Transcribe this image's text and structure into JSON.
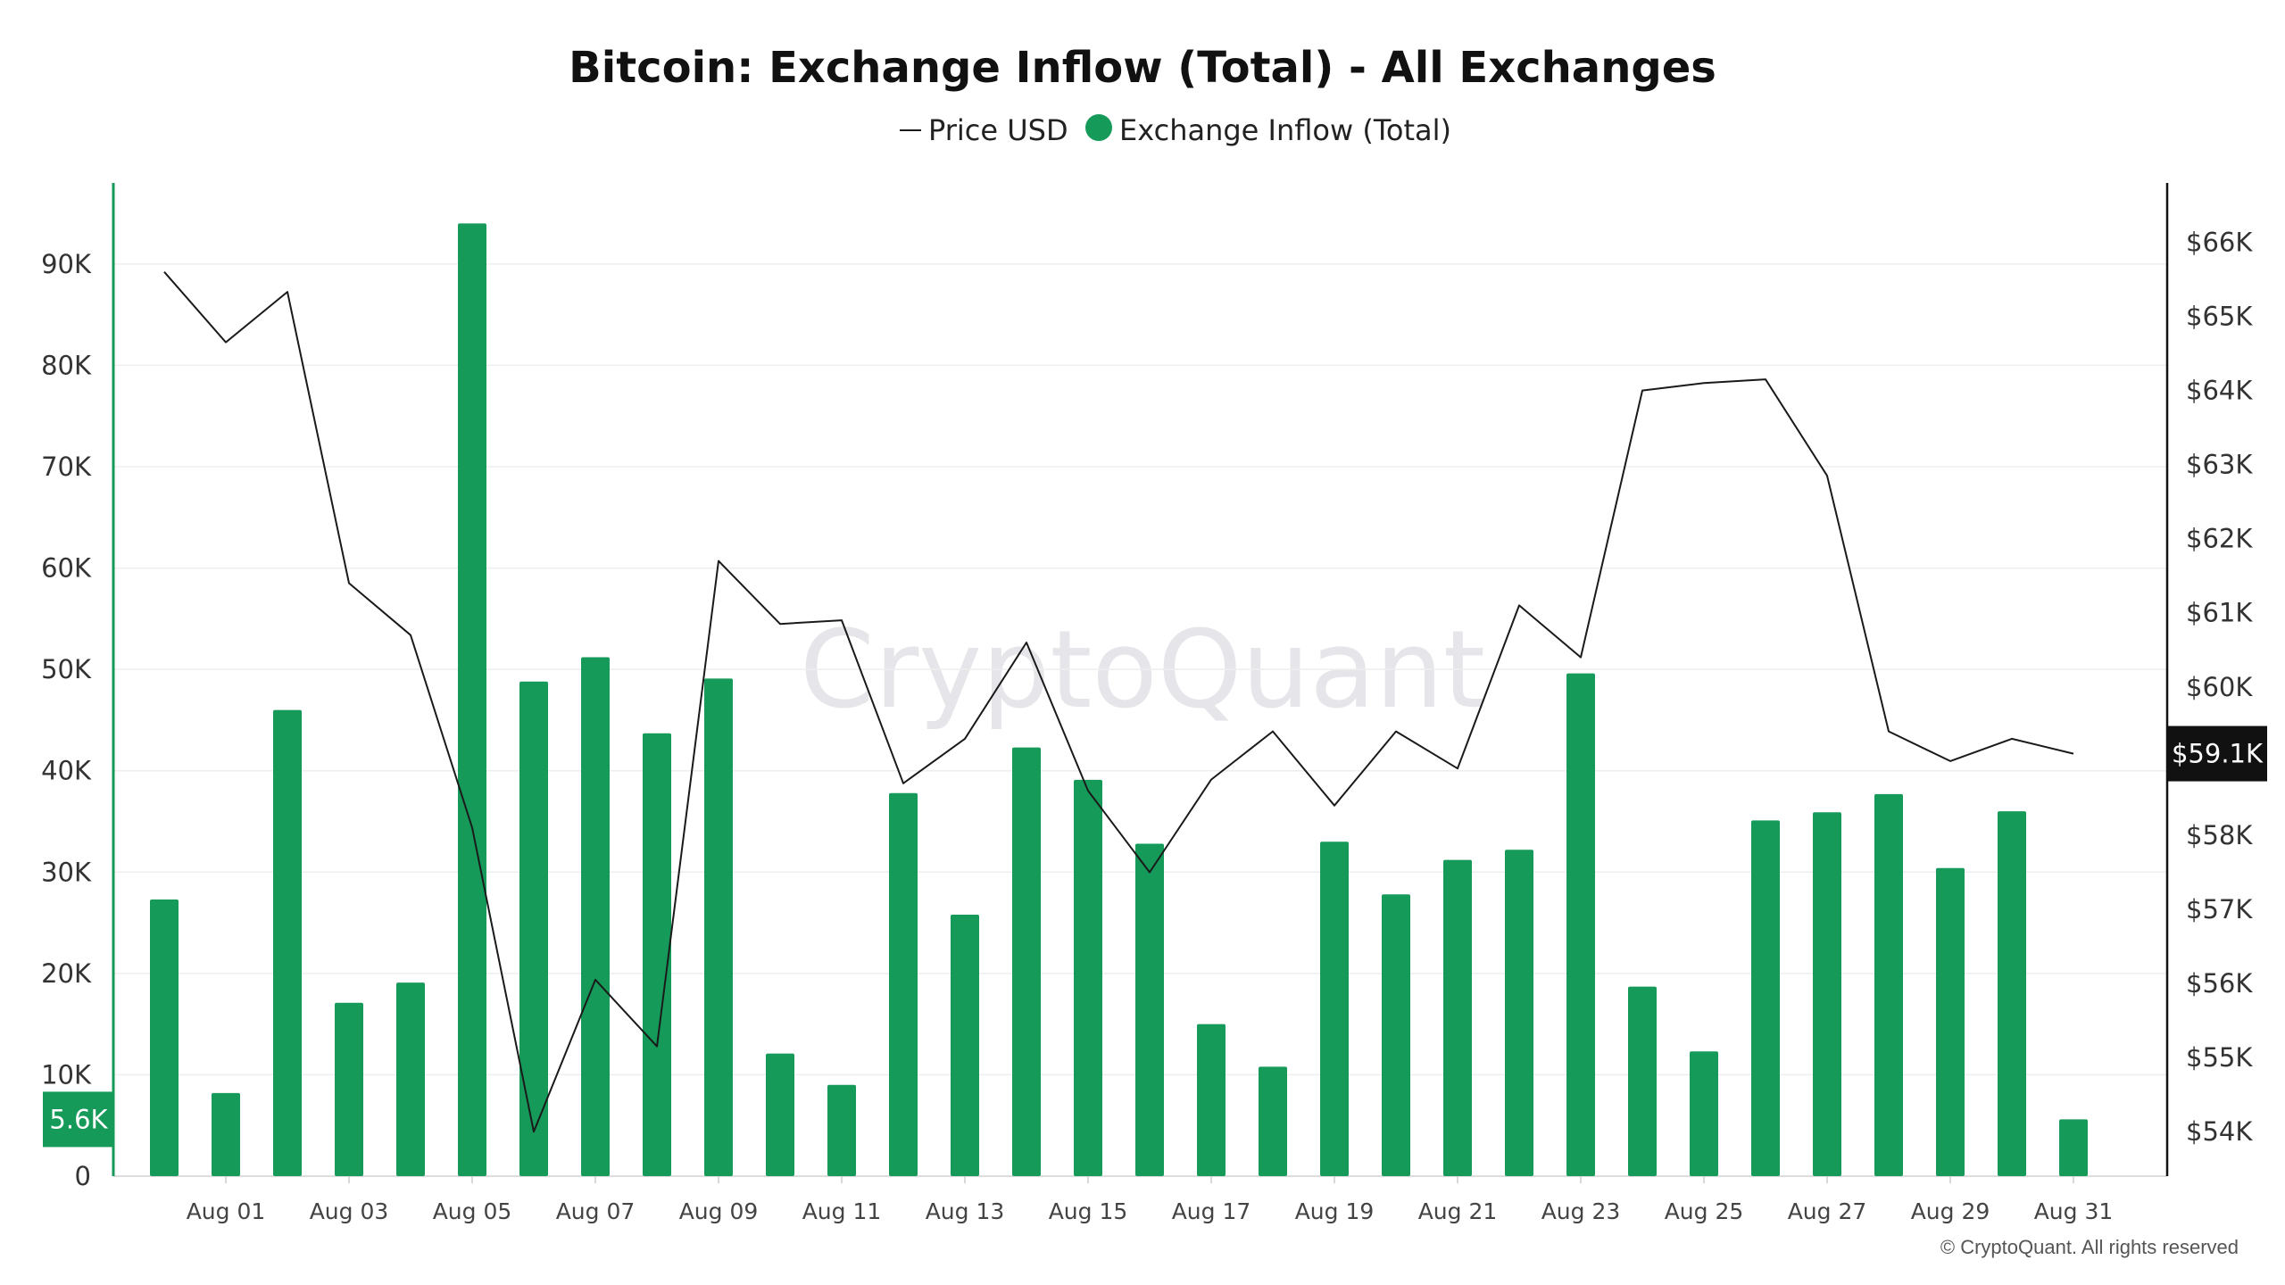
{
  "chart_data": {
    "type": "bar",
    "title": "Bitcoin: Exchange Inflow (Total) - All Exchanges",
    "legend": [
      {
        "label": "Price USD",
        "marker": "line",
        "color": "#1a1a1a"
      },
      {
        "label": "Exchange Inflow (Total)",
        "marker": "dot",
        "color": "#169a5a"
      }
    ],
    "legend_placement": "top-center",
    "categories": [
      "Jul 31",
      "Aug 01",
      "Aug 02",
      "Aug 03",
      "Aug 04",
      "Aug 05",
      "Aug 06",
      "Aug 07",
      "Aug 08",
      "Aug 09",
      "Aug 10",
      "Aug 11",
      "Aug 12",
      "Aug 13",
      "Aug 14",
      "Aug 15",
      "Aug 16",
      "Aug 17",
      "Aug 18",
      "Aug 19",
      "Aug 20",
      "Aug 21",
      "Aug 22",
      "Aug 23",
      "Aug 24",
      "Aug 25",
      "Aug 26",
      "Aug 27",
      "Aug 28",
      "Aug 29",
      "Aug 30",
      "Aug 31"
    ],
    "series": [
      {
        "name": "Exchange Inflow (Total)",
        "type": "bar",
        "axis": "left",
        "color": "#169a5a",
        "values": [
          27300,
          8200,
          46000,
          17100,
          19100,
          94000,
          48800,
          51200,
          43700,
          49100,
          12100,
          9000,
          37800,
          25800,
          42300,
          39100,
          32800,
          15000,
          10800,
          33000,
          27800,
          31200,
          32200,
          49600,
          18700,
          12300,
          35100,
          35900,
          37700,
          30400,
          36000,
          5600
        ]
      },
      {
        "name": "Price USD",
        "type": "line",
        "axis": "right",
        "color": "#1a1a1a",
        "values": [
          65600,
          64650,
          65330,
          61400,
          60700,
          58100,
          54000,
          56050,
          55150,
          61700,
          60850,
          60900,
          58700,
          59300,
          60600,
          58600,
          57500,
          58750,
          59400,
          58400,
          59400,
          58900,
          61100,
          60400,
          64000,
          64100,
          64150,
          62850,
          59400,
          59000,
          59300,
          59100
        ]
      }
    ],
    "left_axis": {
      "ylim": [
        0,
        98000
      ],
      "ticks": [
        0,
        10000,
        20000,
        30000,
        40000,
        50000,
        60000,
        70000,
        80000,
        90000
      ],
      "tick_labels": [
        "0",
        "10K",
        "20K",
        "30K",
        "40K",
        "50K",
        "60K",
        "70K",
        "80K",
        "90K"
      ],
      "current_value_label": "5.6K",
      "current_value": 5600
    },
    "right_axis": {
      "ylim": [
        53400,
        66800
      ],
      "ticks": [
        54000,
        55000,
        56000,
        57000,
        58000,
        60000,
        61000,
        62000,
        63000,
        64000,
        65000,
        66000
      ],
      "tick_labels": [
        "$54K",
        "$55K",
        "$56K",
        "$57K",
        "$58K",
        "$60K",
        "$61K",
        "$62K",
        "$63K",
        "$64K",
        "$65K",
        "$66K"
      ],
      "current_value_label": "$59.1K",
      "current_value": 59100
    },
    "x_axis": {
      "tick_indices": [
        1,
        3,
        5,
        7,
        9,
        11,
        13,
        15,
        17,
        19,
        21,
        23,
        25,
        27,
        29,
        31
      ],
      "tick_labels": [
        "Aug 01",
        "Aug 03",
        "Aug 05",
        "Aug 07",
        "Aug 09",
        "Aug 11",
        "Aug 13",
        "Aug 15",
        "Aug 17",
        "Aug 19",
        "Aug 21",
        "Aug 23",
        "Aug 25",
        "Aug 27",
        "Aug 29",
        "Aug 31"
      ]
    },
    "grid": true
  },
  "watermark": "CryptoQuant",
  "credit": "© CryptoQuant. All rights reserved",
  "colors": {
    "bar": "#169a5a",
    "left_axis": "#169a5a",
    "price_line": "#1a1a1a",
    "right_badge": "#111111",
    "grid": "#eeeeee"
  }
}
